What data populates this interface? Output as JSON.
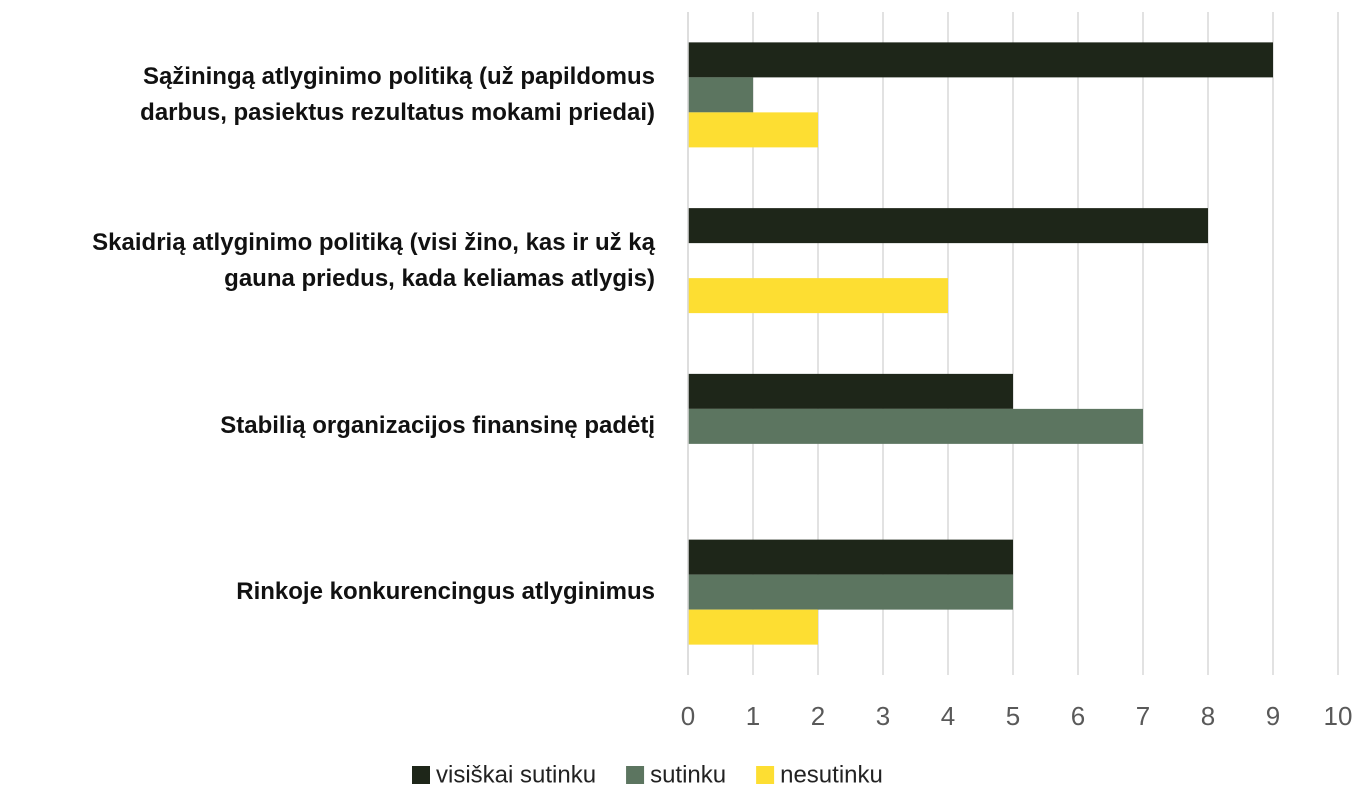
{
  "chart_data": {
    "type": "hbar",
    "categories": [
      "Sąžiningą atlyginimo politiką (už papildomus\ndarbus, pasiektus rezultatus mokami priedai)",
      "Skaidrią atlyginimo politiką (visi žino, kas ir už ką\ngauna priedus, kada keliamas atlygis)",
      "Stabilią organizacijos finansinę padėtį",
      "Rinkoje konkurencingus atlyginimus"
    ],
    "series": [
      {
        "name": "visiškai sutinku",
        "color": "#1e2619",
        "values": [
          9,
          8,
          5,
          5
        ]
      },
      {
        "name": "sutinku",
        "color": "#5c7560",
        "values": [
          1,
          0,
          7,
          5
        ]
      },
      {
        "name": "nesutinku",
        "color": "#fdde32",
        "values": [
          2,
          4,
          0,
          2
        ]
      }
    ],
    "xlim": [
      0,
      10
    ],
    "xticks": [
      0,
      1,
      2,
      3,
      4,
      5,
      6,
      7,
      8,
      9,
      10
    ],
    "grid": true,
    "legend": "bottom"
  }
}
